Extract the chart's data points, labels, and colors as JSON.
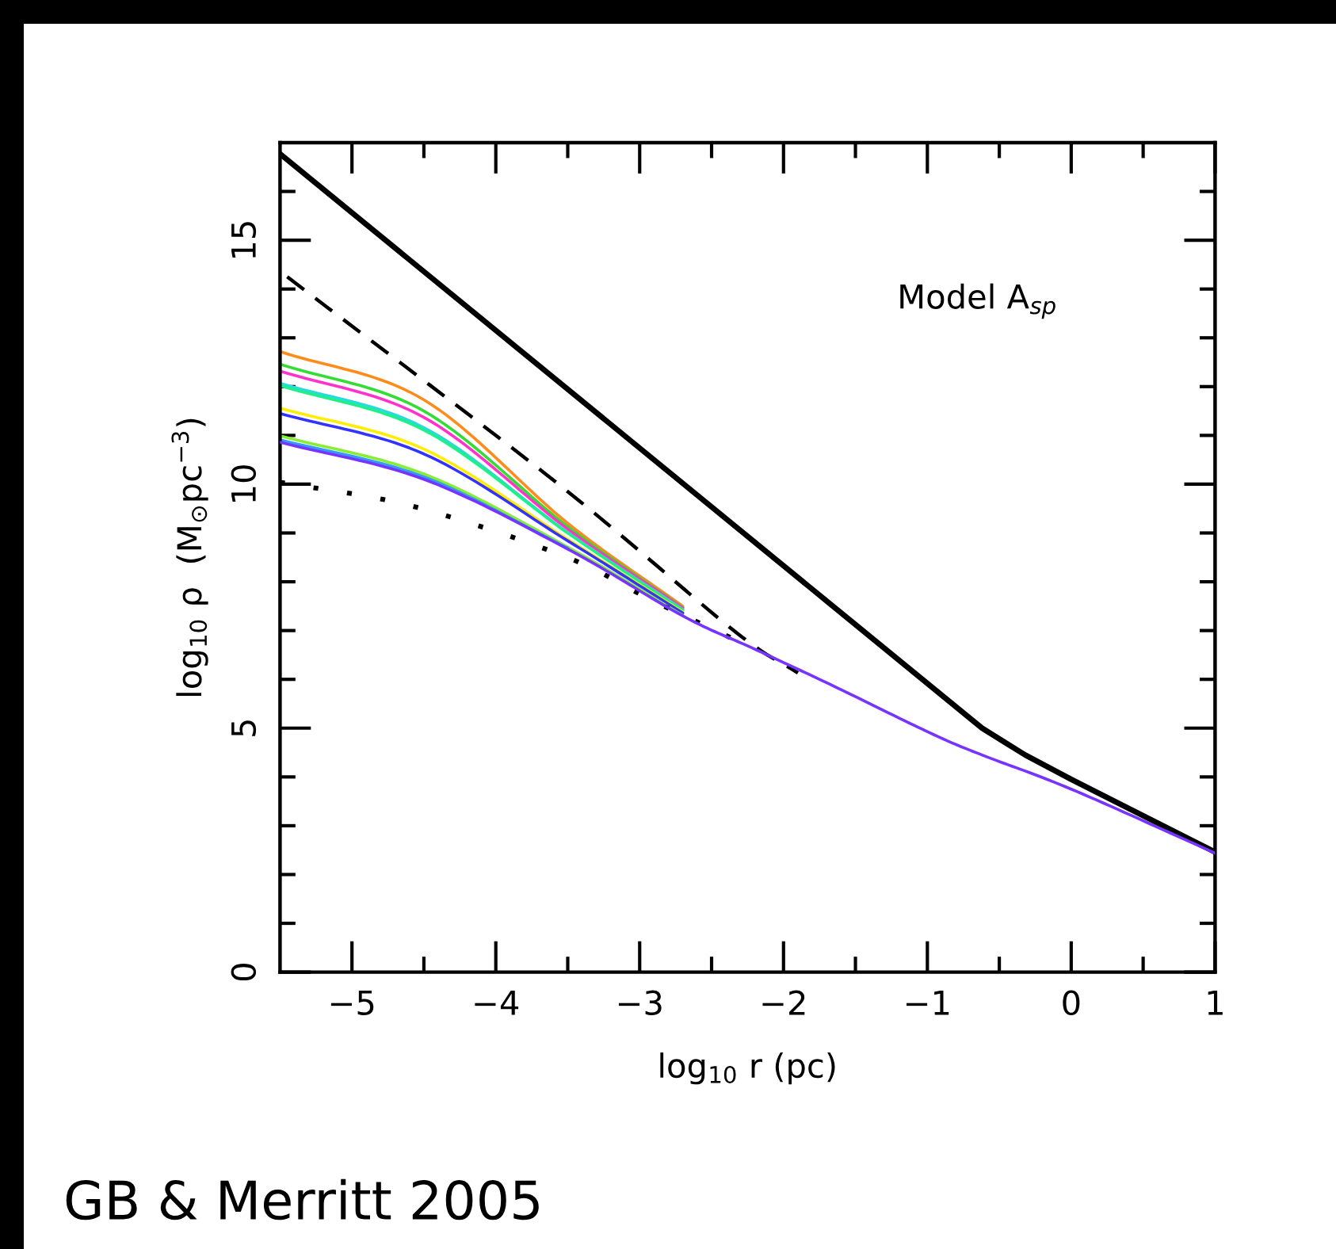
{
  "chart_data": {
    "type": "line",
    "xlabel": "log$_{10}$ r (pc)",
    "ylabel": "log$_{10}$ ρ  (M$_{⊙}$pc$^{−3}$)",
    "annotations": [
      "Model A$_{sp}$",
      "GB & Merritt 2005"
    ],
    "xlim": [
      -5.5,
      1
    ],
    "ylim": [
      0,
      17
    ],
    "xticks": [
      -5,
      -4,
      -3,
      -2,
      -1,
      0,
      1,
      {
        "value": -4.5,
        "label": null
      },
      {
        "value": -3.5,
        "label": null
      },
      {
        "value": -2.5,
        "label": null
      },
      {
        "value": -1.5,
        "label": null
      },
      {
        "value": -0.5,
        "label": null
      },
      {
        "value": 0.5,
        "label": null
      }
    ],
    "yticks": [
      0,
      5,
      10,
      15,
      {
        "value": 1,
        "label": null
      },
      {
        "value": 2,
        "label": null
      },
      {
        "value": 3,
        "label": null
      },
      {
        "value": 4,
        "label": null
      },
      {
        "value": 6,
        "label": null
      },
      {
        "value": 7,
        "label": null
      },
      {
        "value": 8,
        "label": null
      },
      {
        "value": 9,
        "label": null
      },
      {
        "value": 11,
        "label": null
      },
      {
        "value": 12,
        "label": null
      },
      {
        "value": 13,
        "label": null
      },
      {
        "value": 14,
        "label": null
      },
      {
        "value": 16,
        "label": null
      }
    ],
    "grid": false,
    "legend": false,
    "series": [
      {
        "color": "#000000",
        "line_style": "solid",
        "x": [
          -5.5,
          -0.62,
          -0.32,
          0,
          1
        ],
        "values": [
          16.77,
          5.0,
          4.45,
          3.95,
          2.46
        ]
      },
      {
        "color": "#000000",
        "line_style": "dashed",
        "x": [
          -5.45,
          -3.56,
          -2.35,
          -1.9
        ],
        "values": [
          14.25,
          9.99,
          7.01,
          6.13
        ]
      },
      {
        "color": "#000000",
        "line_style": "dotted",
        "x": [
          -5.5,
          -4.58,
          -3.52,
          -2.9,
          -2.2
        ],
        "values": [
          10.04,
          9.55,
          8.52,
          7.6,
          6.62
        ]
      },
      {
        "color": "#ff8c1a",
        "line_style": "solid",
        "x": [
          -5.5,
          -4.5,
          -3.5,
          -2.7
        ],
        "values": [
          12.72,
          11.73,
          9.2,
          7.5
        ]
      },
      {
        "color": "#33dd33",
        "line_style": "solid",
        "x": [
          -5.5,
          -4.5,
          -3.5,
          -2.7
        ],
        "values": [
          12.46,
          11.5,
          9.13,
          7.47
        ]
      },
      {
        "color": "#ff33cc",
        "line_style": "solid",
        "x": [
          -5.5,
          -4.5,
          -3.5,
          -2.7
        ],
        "values": [
          12.32,
          11.37,
          9.08,
          7.46
        ]
      },
      {
        "color": "#22dddd",
        "line_style": "solid",
        "x": [
          -5.5,
          -4.5,
          -3.5,
          -2.7
        ],
        "values": [
          12.07,
          11.16,
          9.01,
          7.43
        ]
      },
      {
        "color": "#22ee88",
        "line_style": "solid",
        "x": [
          -5.5,
          -4.5,
          -3.5,
          -2.7
        ],
        "values": [
          12.02,
          11.11,
          9.0,
          7.42
        ]
      },
      {
        "color": "#ffee00",
        "line_style": "solid",
        "x": [
          -5.5,
          -4.5,
          -3.5,
          -2.7
        ],
        "values": [
          11.56,
          10.72,
          8.87,
          7.38
        ]
      },
      {
        "color": "#3333ff",
        "line_style": "solid",
        "x": [
          -5.5,
          -4.5,
          -3.5,
          -2.7
        ],
        "values": [
          11.45,
          10.62,
          8.84,
          7.36
        ]
      },
      {
        "color": "#88ee33",
        "line_style": "solid",
        "x": [
          -5.5,
          -4.5,
          -3.5,
          -2.7
        ],
        "values": [
          10.99,
          10.21,
          8.71,
          7.31
        ]
      },
      {
        "color": "#3399ff",
        "line_style": "solid",
        "x": [
          -5.5,
          -4.5,
          -3.5
        ],
        "values": [
          10.91,
          10.15,
          8.69
        ]
      },
      {
        "color": "#7733ff",
        "line_style": "solid",
        "x": [
          -5.5,
          -4.5,
          -3.5,
          -2.7,
          -2.2,
          -1.65,
          -0.98,
          -0.62,
          0,
          1
        ],
        "values": [
          10.86,
          10.1,
          8.67,
          7.3,
          6.62,
          5.86,
          4.9,
          4.45,
          3.75,
          2.44
        ]
      }
    ]
  }
}
